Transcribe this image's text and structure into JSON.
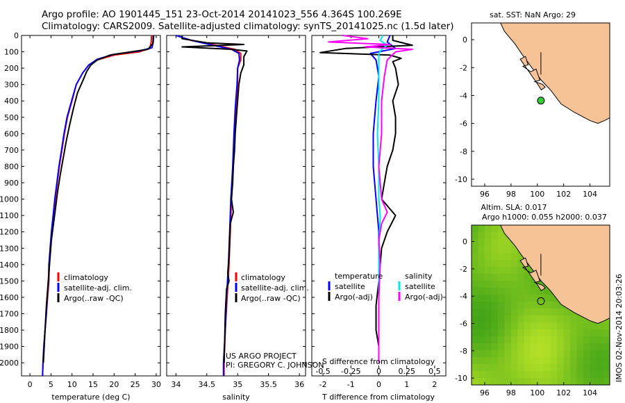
{
  "header": {
    "line1": "Argo profile: AO 1901445_151 23-Oct-2014 20141023_556 4.364S 100.269E",
    "line2": "Climatology: CARS2009. Satellite-adjusted climatology: synTS_20141025.nc (1.5d later)"
  },
  "colors": {
    "climatology": "#ff0000",
    "satellite": "#0000ff",
    "argo": "#000000",
    "salinity_satellite": "#00e5ee",
    "salinity_argo": "#ff00ff",
    "land": "#f5c396",
    "argo_marker": "#33cc33"
  },
  "chart_data": [
    {
      "type": "line",
      "name": "temperature-profile",
      "xlabel": "temperature (deg C)",
      "xlim": [
        -2,
        31
      ],
      "xticks": [
        "0",
        "5",
        "10",
        "15",
        "20",
        "25",
        "30"
      ],
      "ylim": [
        2080,
        0
      ],
      "yticks": [
        "0",
        "100",
        "200",
        "300",
        "400",
        "500",
        "600",
        "700",
        "800",
        "900",
        "1000",
        "1100",
        "1200",
        "1300",
        "1400",
        "1500",
        "1600",
        "1700",
        "1800",
        "1900",
        "2000"
      ],
      "legend": [
        "climatology",
        "satellite-adj. clim.",
        "Argo(..raw -QC)"
      ],
      "series": [
        {
          "name": "climatology",
          "points": [
            [
              28.9,
              0
            ],
            [
              28.8,
              40
            ],
            [
              28.5,
              80
            ],
            [
              26,
              100
            ],
            [
              20,
              120
            ],
            [
              16,
              150
            ],
            [
              14,
              180
            ],
            [
              12.5,
              230
            ],
            [
              11,
              300
            ],
            [
              10,
              400
            ],
            [
              8.9,
              500
            ],
            [
              8.2,
              600
            ],
            [
              7.6,
              700
            ],
            [
              7,
              800
            ],
            [
              6.5,
              900
            ],
            [
              6,
              1000
            ],
            [
              5.6,
              1100
            ],
            [
              5.2,
              1200
            ],
            [
              4.8,
              1300
            ],
            [
              4.6,
              1400
            ],
            [
              4.5,
              1500
            ],
            [
              4.2,
              1600
            ],
            [
              3.9,
              1700
            ],
            [
              3.6,
              1800
            ],
            [
              3.3,
              1900
            ],
            [
              3.1,
              2000
            ],
            [
              3.0,
              2080
            ]
          ]
        },
        {
          "name": "satellite-adj. clim.",
          "points": [
            [
              29.4,
              0
            ],
            [
              29.3,
              40
            ],
            [
              29,
              75
            ],
            [
              26,
              95
            ],
            [
              20,
              115
            ],
            [
              16,
              145
            ],
            [
              14,
              180
            ],
            [
              12.5,
              230
            ],
            [
              11,
              300
            ],
            [
              9.9,
              400
            ],
            [
              8.8,
              500
            ],
            [
              8.1,
              600
            ],
            [
              7.5,
              700
            ],
            [
              6.9,
              800
            ],
            [
              6.4,
              900
            ],
            [
              5.9,
              1000
            ],
            [
              5.5,
              1100
            ],
            [
              5.1,
              1200
            ],
            [
              4.8,
              1300
            ],
            [
              4.5,
              1400
            ],
            [
              4.4,
              1500
            ],
            [
              4.1,
              1600
            ],
            [
              3.9,
              1700
            ],
            [
              3.6,
              1800
            ],
            [
              3.3,
              1900
            ],
            [
              3.1,
              2000
            ],
            [
              3.0,
              2080
            ]
          ]
        },
        {
          "name": "Argo(..raw -QC)",
          "points": [
            [
              29.3,
              0
            ],
            [
              29.2,
              50
            ],
            [
              28,
              85
            ],
            [
              24,
              100
            ],
            [
              19,
              120
            ],
            [
              16,
              150
            ],
            [
              14.5,
              180
            ],
            [
              13.5,
              220
            ],
            [
              12.5,
              280
            ],
            [
              11.3,
              350
            ],
            [
              10.3,
              450
            ],
            [
              9.4,
              550
            ],
            [
              8.6,
              650
            ],
            [
              7.9,
              750
            ],
            [
              7.2,
              850
            ],
            [
              6.6,
              950
            ],
            [
              6.1,
              1050
            ],
            [
              5.6,
              1150
            ],
            [
              5.1,
              1250
            ],
            [
              4.8,
              1350
            ],
            [
              4.5,
              1450
            ],
            [
              4.2,
              1550
            ],
            [
              3.9,
              1650
            ],
            [
              3.7,
              1750
            ],
            [
              3.5,
              1850
            ],
            [
              3.3,
              1950
            ],
            [
              3.2,
              2000
            ]
          ]
        }
      ]
    },
    {
      "type": "line",
      "name": "salinity-profile",
      "xlabel": "salinity",
      "xlim": [
        33.85,
        36.1
      ],
      "xticks": [
        "34",
        "34.5",
        "35",
        "35.5",
        "36"
      ],
      "ylim": [
        2080,
        0
      ],
      "legend": [
        "climatology",
        "satellite-adj. clim.",
        "Argo(..raw -QC)"
      ],
      "series": [
        {
          "name": "climatology",
          "points": [
            [
              34.0,
              0
            ],
            [
              34.25,
              30
            ],
            [
              34.65,
              60
            ],
            [
              34.95,
              85
            ],
            [
              35.05,
              110
            ],
            [
              35.05,
              150
            ],
            [
              35.0,
              200
            ],
            [
              35.0,
              300
            ],
            [
              34.97,
              450
            ],
            [
              34.95,
              600
            ],
            [
              34.93,
              800
            ],
            [
              34.9,
              1000
            ],
            [
              34.88,
              1200
            ],
            [
              34.86,
              1400
            ],
            [
              34.83,
              1600
            ],
            [
              34.8,
              1800
            ],
            [
              34.78,
              2000
            ],
            [
              34.78,
              2080
            ]
          ]
        },
        {
          "name": "satellite-adj. clim.",
          "points": [
            [
              34.0,
              0
            ],
            [
              34.25,
              30
            ],
            [
              34.6,
              60
            ],
            [
              34.9,
              85
            ],
            [
              35.02,
              110
            ],
            [
              35.03,
              150
            ],
            [
              35.0,
              200
            ],
            [
              34.99,
              300
            ],
            [
              34.96,
              450
            ],
            [
              34.94,
              600
            ],
            [
              34.92,
              800
            ],
            [
              34.89,
              1000
            ],
            [
              34.87,
              1200
            ],
            [
              34.85,
              1400
            ],
            [
              34.82,
              1600
            ],
            [
              34.8,
              1800
            ],
            [
              34.77,
              2000
            ],
            [
              34.77,
              2080
            ]
          ]
        },
        {
          "name": "Argo(..raw -QC)",
          "points": [
            [
              34.1,
              0
            ],
            [
              34.1,
              20
            ],
            [
              34.5,
              45
            ],
            [
              35.1,
              55
            ],
            [
              34.1,
              70
            ],
            [
              34.9,
              85
            ],
            [
              35.15,
              95
            ],
            [
              35.1,
              130
            ],
            [
              35.1,
              180
            ],
            [
              35.05,
              230
            ],
            [
              35.02,
              300
            ],
            [
              35.0,
              400
            ],
            [
              34.98,
              500
            ],
            [
              34.96,
              600
            ],
            [
              34.95,
              700
            ],
            [
              34.93,
              800
            ],
            [
              34.92,
              900
            ],
            [
              34.9,
              1000
            ],
            [
              34.93,
              1080
            ],
            [
              34.88,
              1150
            ],
            [
              34.87,
              1250
            ],
            [
              34.86,
              1350
            ],
            [
              34.84,
              1450
            ],
            [
              34.86,
              1500
            ],
            [
              34.82,
              1550
            ],
            [
              34.8,
              1700
            ],
            [
              34.79,
              1850
            ],
            [
              34.78,
              2000
            ]
          ]
        }
      ]
    },
    {
      "type": "line",
      "name": "difference-profile",
      "xlabel": "T difference from climatology",
      "xlabel_top": "S difference from climatology",
      "xlim": [
        -2.4,
        2.4
      ],
      "xticks": [
        "-2",
        "-1",
        "0",
        "1",
        "2"
      ],
      "xticks_top": [
        "-0.5",
        "-0.25",
        "0",
        "0.25",
        "0.5"
      ],
      "ylim": [
        2080,
        0
      ],
      "legend": {
        "temperature_header": "temperature",
        "salinity_header": "salinity",
        "entries": [
          "satellite",
          "Argo(-adj)",
          "satellite",
          "Argo(-adj)"
        ]
      },
      "series": [
        {
          "name": "temperature satellite",
          "points": [
            [
              0.4,
              0
            ],
            [
              0.3,
              40
            ],
            [
              0.6,
              80
            ],
            [
              -0.3,
              110
            ],
            [
              -0.1,
              150
            ],
            [
              0,
              250
            ],
            [
              -0.1,
              400
            ],
            [
              -0.2,
              600
            ],
            [
              -0.2,
              800
            ],
            [
              -0.1,
              1000
            ],
            [
              0,
              1200
            ],
            [
              0,
              1400
            ],
            [
              0,
              1600
            ],
            [
              0,
              1800
            ],
            [
              0,
              2000
            ]
          ]
        },
        {
          "name": "temperature Argo(-adj)",
          "points": [
            [
              0.5,
              0
            ],
            [
              0.5,
              30
            ],
            [
              1.2,
              60
            ],
            [
              -1.2,
              80
            ],
            [
              -2.1,
              105
            ],
            [
              0.4,
              120
            ],
            [
              0.8,
              140
            ],
            [
              0.5,
              160
            ],
            [
              0.6,
              200
            ],
            [
              0.7,
              300
            ],
            [
              0.5,
              400
            ],
            [
              0.6,
              500
            ],
            [
              0.6,
              600
            ],
            [
              0.5,
              700
            ],
            [
              0.3,
              800
            ],
            [
              0.2,
              900
            ],
            [
              0.1,
              1000
            ],
            [
              0.6,
              1100
            ],
            [
              0.3,
              1200
            ],
            [
              0.1,
              1300
            ],
            [
              0,
              1500
            ],
            [
              -0.1,
              1650
            ],
            [
              -0.1,
              1800
            ],
            [
              0,
              1900
            ],
            [
              0,
              2000
            ]
          ]
        },
        {
          "name": "salinity satellite",
          "points": [
            [
              0.15,
              0
            ],
            [
              0.05,
              30
            ],
            [
              0.3,
              60
            ],
            [
              0.1,
              85
            ],
            [
              0.0,
              110
            ],
            [
              0,
              200
            ],
            [
              0,
              400
            ],
            [
              -0.05,
              600
            ],
            [
              0,
              800
            ],
            [
              0,
              1000
            ],
            [
              0.05,
              1100
            ],
            [
              0,
              1300
            ],
            [
              0,
              1600
            ],
            [
              0,
              1800
            ],
            [
              0,
              2000
            ]
          ]
        },
        {
          "name": "salinity Argo(-adj)",
          "points": [
            [
              -1.3,
              0
            ],
            [
              -0.4,
              20
            ],
            [
              -1.8,
              40
            ],
            [
              0.4,
              55
            ],
            [
              -0.5,
              70
            ],
            [
              1.2,
              85
            ],
            [
              0.6,
              100
            ],
            [
              0.3,
              150
            ],
            [
              0.2,
              250
            ],
            [
              0.1,
              400
            ],
            [
              0.1,
              600
            ],
            [
              0,
              800
            ],
            [
              0.05,
              900
            ],
            [
              0.1,
              1000
            ],
            [
              0.3,
              1080
            ],
            [
              0.1,
              1150
            ],
            [
              0,
              1250
            ],
            [
              0.05,
              1400
            ],
            [
              0,
              1600
            ],
            [
              0,
              1800
            ],
            [
              0,
              2000
            ]
          ]
        }
      ]
    },
    {
      "type": "map",
      "name": "sst-map",
      "title": "sat. SST: NaN Argo: 29",
      "xlim": [
        95,
        105.5
      ],
      "ylim": [
        -10.5,
        1.2
      ],
      "xticks": [
        "96",
        "98",
        "100",
        "102",
        "104"
      ],
      "yticks": [
        "0",
        "-2",
        "-4",
        "-6",
        "-8",
        "-10"
      ],
      "argo_position": {
        "lon": 100.269,
        "lat": -4.364
      }
    },
    {
      "type": "heatmap",
      "name": "sla-map",
      "title_line1": "Altim. SLA: 0.017",
      "title_line2": "Argo h1000: 0.055 h2000: 0.037",
      "xlim": [
        95,
        105.5
      ],
      "ylim": [
        -10.5,
        1.2
      ],
      "xticks": [
        "96",
        "98",
        "100",
        "102",
        "104"
      ],
      "yticks": [
        "0",
        "-2",
        "-4",
        "-6",
        "-8",
        "-10"
      ],
      "argo_position": {
        "lon": 100.269,
        "lat": -4.364
      }
    }
  ],
  "credit": {
    "line1": "US ARGO PROJECT",
    "line2": "PI: GREGORY C. JOHNSON"
  },
  "stamp": "IMOS 02-Nov-2014 20:03:26"
}
